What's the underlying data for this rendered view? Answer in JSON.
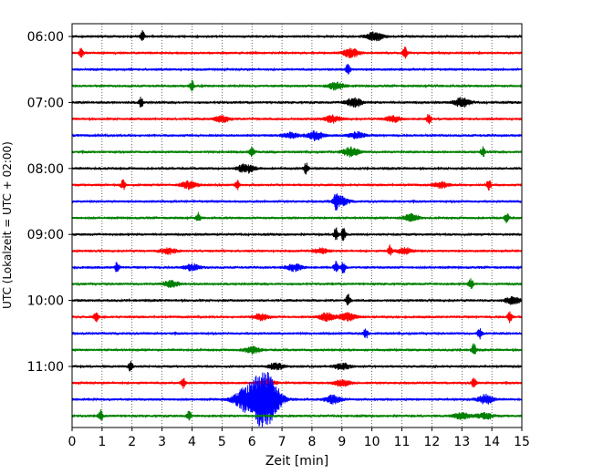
{
  "chart_data": {
    "type": "line",
    "title": "",
    "xlabel": "Zeit  [min]",
    "ylabel": "UTC (Lokalzeit = UTC + 02:00)",
    "xlim": [
      0,
      15
    ],
    "x_ticks": [
      0,
      1,
      2,
      3,
      4,
      5,
      6,
      7,
      8,
      9,
      10,
      11,
      12,
      13,
      14,
      15
    ],
    "grid": "vertical dotted lines at each minute",
    "y_ticks": [
      "06:00",
      "07:00",
      "08:00",
      "09:00",
      "10:00",
      "11:00"
    ],
    "trace_colors": [
      "#000000",
      "#ff0000",
      "#0000ff",
      "#008000"
    ],
    "trace_interval_min": 15,
    "traces": [
      {
        "start": "06:00",
        "color": "#000000",
        "events": [
          [
            2.35,
            1.0
          ],
          [
            10.1,
            0.9
          ]
        ]
      },
      {
        "start": "06:15",
        "color": "#ff0000",
        "events": [
          [
            0.3,
            1.0
          ],
          [
            9.3,
            0.9
          ],
          [
            11.1,
            1.1
          ]
        ]
      },
      {
        "start": "06:30",
        "color": "#0000ff",
        "events": [
          [
            9.2,
            1.1
          ]
        ]
      },
      {
        "start": "06:45",
        "color": "#008000",
        "events": [
          [
            4.0,
            1.0
          ],
          [
            8.8,
            0.8
          ]
        ]
      },
      {
        "start": "07:00",
        "color": "#000000",
        "events": [
          [
            2.3,
            1.0
          ],
          [
            9.4,
            0.9
          ],
          [
            13.0,
            0.9
          ]
        ]
      },
      {
        "start": "07:15",
        "color": "#ff0000",
        "events": [
          [
            5.0,
            0.6
          ],
          [
            8.7,
            0.7
          ],
          [
            10.7,
            0.6
          ],
          [
            11.9,
            1.1
          ]
        ]
      },
      {
        "start": "07:30",
        "color": "#0000ff",
        "events": [
          [
            7.3,
            0.5
          ],
          [
            8.1,
            0.9
          ],
          [
            9.5,
            0.6
          ]
        ]
      },
      {
        "start": "07:45",
        "color": "#008000",
        "events": [
          [
            6.0,
            1.0
          ],
          [
            9.3,
            0.9
          ],
          [
            13.7,
            1.0
          ]
        ]
      },
      {
        "start": "08:00",
        "color": "#000000",
        "events": [
          [
            5.8,
            0.9
          ],
          [
            7.8,
            1.1
          ]
        ]
      },
      {
        "start": "08:15",
        "color": "#ff0000",
        "events": [
          [
            1.7,
            1.0
          ],
          [
            3.9,
            0.7
          ],
          [
            5.5,
            1.0
          ],
          [
            12.3,
            0.6
          ],
          [
            13.9,
            1.1
          ]
        ]
      },
      {
        "start": "08:30",
        "color": "#0000ff",
        "events": [
          [
            8.8,
            1.1
          ],
          [
            8.95,
            0.9
          ]
        ]
      },
      {
        "start": "08:45",
        "color": "#008000",
        "events": [
          [
            4.2,
            1.0
          ],
          [
            11.3,
            0.7
          ],
          [
            14.5,
            1.1
          ]
        ]
      },
      {
        "start": "09:00",
        "color": "#000000",
        "events": [
          [
            8.8,
            1.3
          ],
          [
            9.05,
            1.2
          ]
        ]
      },
      {
        "start": "09:15",
        "color": "#ff0000",
        "events": [
          [
            3.2,
            0.6
          ],
          [
            8.3,
            0.5
          ],
          [
            10.6,
            1.0
          ],
          [
            11.1,
            0.6
          ]
        ]
      },
      {
        "start": "09:30",
        "color": "#0000ff",
        "events": [
          [
            1.5,
            1.0
          ],
          [
            4.0,
            0.6
          ],
          [
            7.4,
            0.7
          ],
          [
            8.8,
            1.2
          ],
          [
            9.05,
            1.2
          ]
        ]
      },
      {
        "start": "09:45",
        "color": "#008000",
        "events": [
          [
            3.3,
            0.6
          ],
          [
            13.3,
            1.1
          ]
        ]
      },
      {
        "start": "10:00",
        "color": "#000000",
        "events": [
          [
            9.2,
            1.2
          ],
          [
            14.7,
            0.7
          ]
        ]
      },
      {
        "start": "10:15",
        "color": "#ff0000",
        "events": [
          [
            0.8,
            1.0
          ],
          [
            6.3,
            0.6
          ],
          [
            8.5,
            0.8
          ],
          [
            9.2,
            0.8
          ],
          [
            14.6,
            1.1
          ]
        ]
      },
      {
        "start": "10:30",
        "color": "#0000ff",
        "events": [
          [
            9.8,
            1.1
          ],
          [
            13.6,
            1.1
          ]
        ]
      },
      {
        "start": "10:45",
        "color": "#008000",
        "events": [
          [
            6.0,
            0.6
          ],
          [
            13.4,
            1.2
          ]
        ]
      },
      {
        "start": "11:00",
        "color": "#000000",
        "events": [
          [
            1.95,
            1.1
          ],
          [
            6.8,
            0.6
          ],
          [
            9.0,
            0.6
          ]
        ]
      },
      {
        "start": "11:15",
        "color": "#ff0000",
        "events": [
          [
            3.7,
            1.0
          ],
          [
            6.5,
            0.7
          ],
          [
            9.0,
            0.6
          ],
          [
            13.4,
            1.1
          ]
        ]
      },
      {
        "start": "11:30",
        "color": "#0000ff",
        "events": [
          [
            5.8,
            2.0
          ],
          [
            6.3,
            3.5
          ],
          [
            6.6,
            2.8
          ],
          [
            8.7,
            0.8
          ],
          [
            13.8,
            0.9
          ]
        ]
      },
      {
        "start": "11:45",
        "color": "#008000",
        "events": [
          [
            0.95,
            1.1
          ],
          [
            3.9,
            1.0
          ],
          [
            13.0,
            0.7
          ],
          [
            13.75,
            0.7
          ]
        ]
      }
    ]
  }
}
